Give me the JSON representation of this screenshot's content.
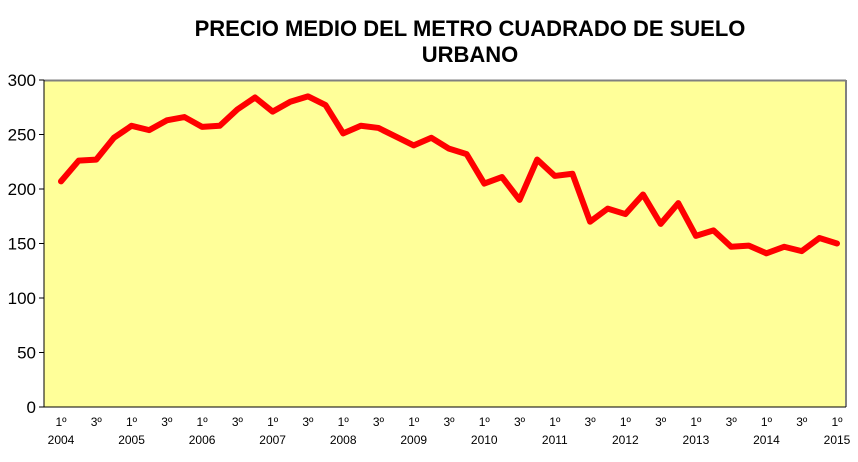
{
  "chart_data": {
    "type": "line",
    "title": "PRECIO MEDIO DEL METRO CUADRADO DE SUELO URBANO",
    "title_lines": [
      "PRECIO MEDIO DEL METRO CUADRADO DE SUELO",
      "URBANO"
    ],
    "xlabel": "",
    "ylabel": "",
    "ylim": [
      0,
      300
    ],
    "yticks": [
      0,
      50,
      100,
      150,
      200,
      250,
      300
    ],
    "grid": false,
    "legend": "none",
    "plot_background": "#FFFF99",
    "line_color": "#FF0000",
    "x_tick_labels": [
      "1º",
      "3º",
      "1º",
      "3º",
      "1º",
      "3º",
      "1º",
      "3º",
      "1º",
      "3º",
      "1º",
      "3º",
      "1º",
      "3º",
      "1º",
      "3º",
      "1º",
      "3º",
      "1º",
      "3º",
      "1º",
      "3º",
      "1º"
    ],
    "x_year_labels": [
      "2004",
      "2005",
      "2006",
      "2007",
      "2008",
      "2009",
      "2010",
      "2011",
      "2012",
      "2013",
      "2014",
      "2015"
    ],
    "series": [
      {
        "values": [
          207,
          226,
          227,
          247,
          258,
          254,
          263,
          266,
          257,
          258,
          273,
          284,
          271,
          280,
          285,
          277,
          251,
          258,
          256,
          248,
          240,
          247,
          237,
          232,
          205,
          211,
          190,
          227,
          212,
          214,
          170,
          182,
          177,
          195,
          168,
          187,
          157,
          162,
          147,
          148,
          141,
          147,
          143,
          155,
          150
        ]
      }
    ]
  }
}
